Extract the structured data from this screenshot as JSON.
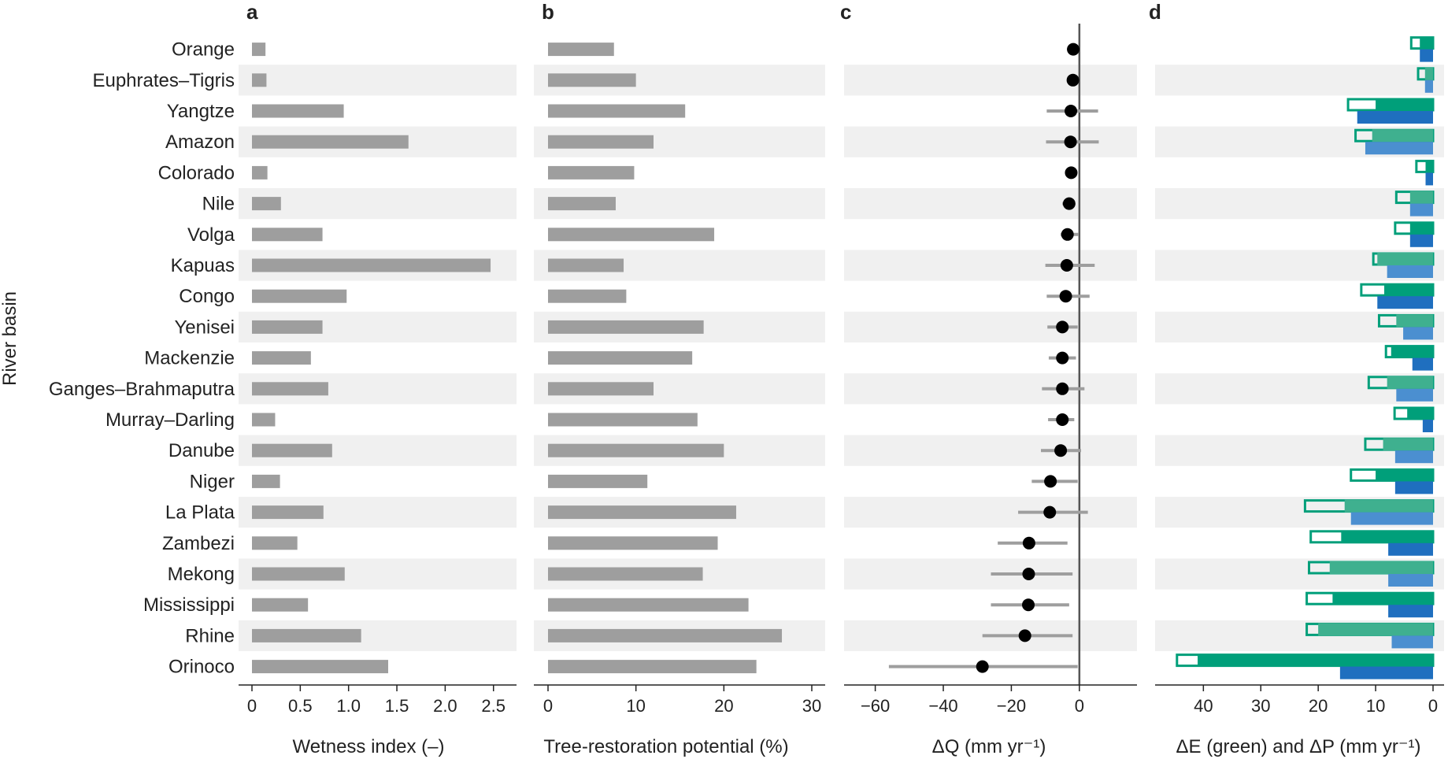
{
  "figure": {
    "y_axis_label": "River basin",
    "colors": {
      "gray_bar": "#9e9e9e",
      "band": "#f0f0f0",
      "dot": "#000000",
      "ci": "#9e9e9e",
      "green": "#009f7a",
      "light_green": "#3fb08f",
      "blue": "#1f6fbf",
      "light_blue": "#4b8fd0",
      "zero_line": "#555555"
    }
  },
  "chart_data": [
    {
      "panel": "a",
      "type": "bar",
      "orientation": "horizontal",
      "categories": [
        "Orange",
        "Euphrates–Tigris",
        "Yangtze",
        "Amazon",
        "Colorado",
        "Nile",
        "Volga",
        "Kapuas",
        "Congo",
        "Yenisei",
        "Mackenzie",
        "Ganges–Brahmaputra",
        "Murray–Darling",
        "Danube",
        "Niger",
        "La Plata",
        "Zambezi",
        "Mekong",
        "Mississippi",
        "Rhine",
        "Orinoco"
      ],
      "values": [
        0.14,
        0.15,
        0.95,
        1.62,
        0.16,
        0.3,
        0.73,
        2.47,
        0.98,
        0.73,
        0.61,
        0.79,
        0.24,
        0.83,
        0.29,
        0.74,
        0.47,
        0.96,
        0.58,
        1.13,
        1.41
      ],
      "xlabel": "Wetness index (–)",
      "xlim": [
        0,
        2.6
      ],
      "xticks": [
        "0",
        "0.5",
        "1.0",
        "1.5",
        "2.0",
        "2.5"
      ],
      "xtick_values": [
        0,
        0.5,
        1.0,
        1.5,
        2.0,
        2.5
      ]
    },
    {
      "panel": "b",
      "type": "bar",
      "orientation": "horizontal",
      "categories": [
        "Orange",
        "Euphrates–Tigris",
        "Yangtze",
        "Amazon",
        "Colorado",
        "Nile",
        "Volga",
        "Kapuas",
        "Congo",
        "Yenisei",
        "Mackenzie",
        "Ganges–Brahmaputra",
        "Murray–Darling",
        "Danube",
        "Niger",
        "La Plata",
        "Zambezi",
        "Mekong",
        "Mississippi",
        "Rhine",
        "Orinoco"
      ],
      "values": [
        7.5,
        10.0,
        15.6,
        12.0,
        9.8,
        7.7,
        18.9,
        8.6,
        8.9,
        17.7,
        16.4,
        12.0,
        17.0,
        20.0,
        11.3,
        21.4,
        19.3,
        17.6,
        22.8,
        26.6,
        23.7
      ],
      "xlabel": "Tree-restoration potential (%)",
      "xlim": [
        0,
        30
      ],
      "xticks": [
        "0",
        "10",
        "20",
        "30"
      ],
      "xtick_values": [
        0,
        10,
        20,
        30
      ]
    },
    {
      "panel": "c",
      "type": "scatter",
      "categories": [
        "Orange",
        "Euphrates–Tigris",
        "Yangtze",
        "Amazon",
        "Colorado",
        "Nile",
        "Volga",
        "Kapuas",
        "Congo",
        "Yenisei",
        "Mackenzie",
        "Ganges–Brahmaputra",
        "Murray–Darling",
        "Danube",
        "Niger",
        "La Plata",
        "Zambezi",
        "Mekong",
        "Mississippi",
        "Rhine",
        "Orinoco"
      ],
      "values": [
        -1.8,
        -1.9,
        -2.5,
        -2.6,
        -2.4,
        -3.0,
        -3.5,
        -3.7,
        -4.0,
        -5.0,
        -5.0,
        -5.0,
        -5.0,
        -5.5,
        -8.5,
        -8.7,
        -14.8,
        -14.9,
        -15.0,
        -16.0,
        -28.5
      ],
      "ci_low": [
        -1.8,
        -1.9,
        -9.6,
        -9.8,
        -2.4,
        -5.0,
        -5.5,
        -10.0,
        -9.6,
        -9.4,
        -9.0,
        -11.0,
        -9.2,
        -11.3,
        -14.0,
        -18.0,
        -24.0,
        -26.0,
        -26.0,
        -28.5,
        -56.0
      ],
      "ci_high": [
        -1.8,
        -1.9,
        5.5,
        5.7,
        -2.4,
        -1.5,
        -0.2,
        4.5,
        3.0,
        -0.5,
        -1.0,
        1.5,
        -1.5,
        0.5,
        -0.5,
        2.5,
        -3.5,
        -2.0,
        -3.0,
        -2.0,
        -0.5
      ],
      "xlabel": "ΔQ (mm yr⁻¹)",
      "xlim": [
        -65,
        13
      ],
      "xticks": [
        "−60",
        "−40",
        "−20",
        "0"
      ],
      "xtick_values": [
        -60,
        -40,
        -20,
        0
      ]
    },
    {
      "panel": "d",
      "type": "bar",
      "orientation": "horizontal",
      "categories": [
        "Orange",
        "Euphrates–Tigris",
        "Yangtze",
        "Amazon",
        "Colorado",
        "Nile",
        "Volga",
        "Kapuas",
        "Congo",
        "Yenisei",
        "Mackenzie",
        "Ganges–Brahmaputra",
        "Murray–Darling",
        "Danube",
        "Niger",
        "La Plata",
        "Zambezi",
        "Mekong",
        "Mississippi",
        "Rhine",
        "Orinoco"
      ],
      "series": [
        {
          "values": [
            2.3,
            1.4,
            10.0,
            10.6,
            1.3,
            4.0,
            4.0,
            9.7,
            8.5,
            6.4,
            7.3,
            8.0,
            4.5,
            8.7,
            10.0,
            15.4,
            16.0,
            18.0,
            17.5,
            20.0,
            41.0
          ]
        },
        {
          "values": [
            3.8,
            2.6,
            14.8,
            13.5,
            2.9,
            6.4,
            6.6,
            10.4,
            12.5,
            9.4,
            8.2,
            11.2,
            6.7,
            11.8,
            14.3,
            22.3,
            21.3,
            21.6,
            22.0,
            22.0,
            44.6
          ]
        },
        {
          "values": [
            2.3,
            1.4,
            13.2,
            11.8,
            1.3,
            4.0,
            4.0,
            8.0,
            9.7,
            5.2,
            3.6,
            6.4,
            1.8,
            6.6,
            6.6,
            14.3,
            7.8,
            7.8,
            7.8,
            7.2,
            16.2
          ]
        }
      ],
      "xlabel": "ΔE (green) and ΔP (mm yr⁻¹)",
      "xlim": [
        48,
        0
      ],
      "xticks": [
        "40",
        "30",
        "20",
        "10",
        "0"
      ],
      "xtick_values": [
        40,
        30,
        20,
        10,
        0
      ]
    }
  ]
}
